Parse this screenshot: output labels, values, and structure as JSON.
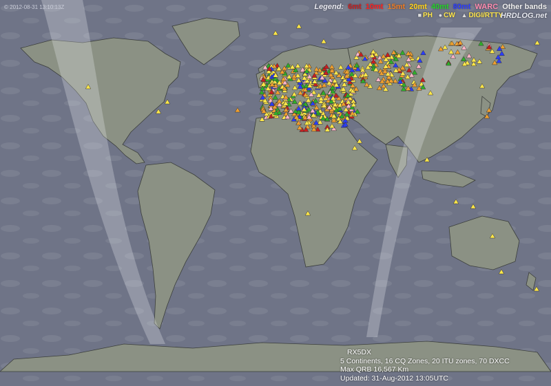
{
  "stamp": "© 2012-08-31 13:10:13Z",
  "legend": {
    "title": "Legend:",
    "bands": [
      {
        "label": "6mt",
        "color": "#c81f1f"
      },
      {
        "label": "10mt",
        "color": "#ff2020"
      },
      {
        "label": "15mt",
        "color": "#f07e26"
      },
      {
        "label": "20mt",
        "color": "#ffd21a"
      },
      {
        "label": "40mt",
        "color": "#25d42a"
      },
      {
        "label": "80mt",
        "color": "#2a3cff"
      },
      {
        "label": "WARC",
        "color": "#ff8cb0"
      },
      {
        "label": "Other bands",
        "color": "#f0f0f0"
      }
    ],
    "modes": [
      {
        "symbol": "■",
        "label": "PH"
      },
      {
        "symbol": "●",
        "label": "CW"
      },
      {
        "symbol": "▲",
        "label": "DIGI/RTTY"
      }
    ],
    "logo": "HRDLOG.net"
  },
  "station": {
    "callsign": "RX5DX",
    "zones": "5 Continents, 16 CQ Zones, 20 ITU zones, 70 DXCC",
    "max_qrb": "Max QRB 16,567 Km",
    "updated": "Updated: 31-Aug-2012 13:05UTC"
  },
  "colors": {
    "ocean": "#6f7487",
    "land": "#8b9184",
    "daylight": "#e9ebf2",
    "border": "#3a3d3a"
  }
}
